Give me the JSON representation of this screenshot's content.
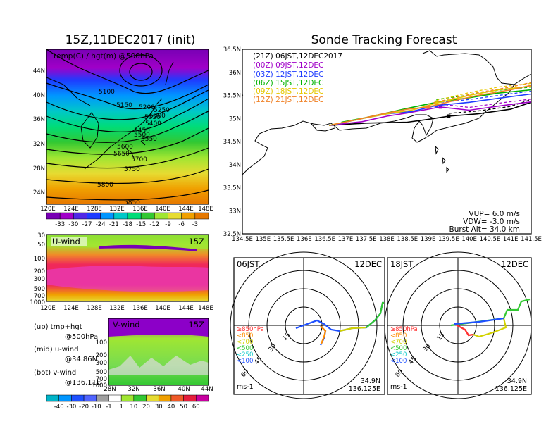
{
  "left_title": "15Z,11DEC2017 (init)",
  "right_title": "Sonde Tracking Forecast",
  "map500": {
    "label": "temp(C) / hgt(m) @500hPa",
    "y_ticks": [
      "44N",
      "40N",
      "36N",
      "32N",
      "28N",
      "24N"
    ],
    "x_ticks": [
      "120E",
      "124E",
      "128E",
      "132E",
      "136E",
      "140E",
      "144E",
      "148E"
    ],
    "contours": [
      "5100",
      "5150",
      "5200",
      "5250",
      "5300",
      "5350",
      "5400",
      "5450",
      "5500",
      "5550",
      "5600",
      "5650",
      "5700",
      "5750",
      "5800",
      "5850"
    ],
    "colorbar": [
      "-33",
      "-30",
      "-27",
      "-24",
      "-21",
      "-18",
      "-15",
      "-12",
      "-9",
      "-6",
      "-3"
    ]
  },
  "uwind": {
    "label": "U-wind",
    "time": "15Z",
    "y_ticks": [
      "30",
      "50",
      "100",
      "200",
      "300",
      "500",
      "700",
      "1000"
    ],
    "x_ticks": [
      "120E",
      "124E",
      "128E",
      "132E",
      "136E",
      "140E",
      "144E",
      "148E"
    ]
  },
  "vwind": {
    "label": "V-wind",
    "time": "15Z",
    "y_ticks": [
      "100",
      "200",
      "300",
      "500",
      "700",
      "1000"
    ],
    "x_ticks": [
      "28N",
      "32N",
      "36N",
      "40N",
      "44N"
    ],
    "colorbar": [
      "-40",
      "-30",
      "-20",
      "-10",
      "-1",
      "1",
      "10",
      "20",
      "30",
      "40",
      "50",
      "60"
    ]
  },
  "notes": [
    {
      "title": "(up) tmp+hgt",
      "sub": "@500hPa"
    },
    {
      "title": "(mid) u-wind",
      "sub": "@34.86N"
    },
    {
      "title": "(bot) v-wind",
      "sub": "@136.11E"
    }
  ],
  "track": {
    "x_ticks": [
      "134.5E",
      "135E",
      "135.5E",
      "136E",
      "136.5E",
      "137E",
      "137.5E",
      "138E",
      "138.5E",
      "139E",
      "139.5E",
      "140E",
      "140.5E",
      "141E",
      "141.5E"
    ],
    "y_ticks": [
      "36.5N",
      "36N",
      "35.5N",
      "35N",
      "34.5N",
      "34N",
      "33.5N",
      "33N",
      "32.5N"
    ],
    "legend": [
      {
        "text": "(21Z)  06JST,12DEC2017",
        "color": "#000000"
      },
      {
        "text": "(00Z)  09JST,12DEC",
        "color": "#a000c8"
      },
      {
        "text": "(03Z)  12JST,12DEC",
        "color": "#1e3cff"
      },
      {
        "text": "(06Z)  15JST,12DEC",
        "color": "#00b400"
      },
      {
        "text": "(09Z)  18JST,12DEC",
        "color": "#e6c800"
      },
      {
        "text": "(12Z)  21JST,12DEC",
        "color": "#f08228"
      }
    ],
    "params": [
      "VUP=  6.0  m/s",
      "VDW= -3.0  m/s",
      "Burst Alt=  34.0  km"
    ]
  },
  "hodographs": [
    {
      "time": "06JST",
      "date": "12DEC",
      "lat": "34.9N",
      "lon": "136.125E",
      "unit": "ms-1",
      "rings": [
        "15",
        "30",
        "45",
        "60"
      ]
    },
    {
      "time": "18JST",
      "date": "12DEC",
      "lat": "34.9N",
      "lon": "136.125E",
      "unit": "ms-1",
      "rings": [
        "15",
        "30",
        "45",
        "60"
      ]
    }
  ],
  "hodo_legend": [
    {
      "text": "≥850hPa",
      "color": "#ff3030"
    },
    {
      "text": "<850",
      "color": "#ff8c00"
    },
    {
      "text": "<700",
      "color": "#d2d200"
    },
    {
      "text": "<500",
      "color": "#32c832"
    },
    {
      "text": "<250",
      "color": "#00c8c8"
    },
    {
      "text": "<100",
      "color": "#1e50ff"
    }
  ],
  "chart_data": [
    {
      "type": "heatmap",
      "title": "15Z,11DEC2017 (init)",
      "ylabel": "",
      "xlabel": "",
      "x_range": [
        "120E",
        "148E"
      ],
      "y_range": [
        "22N",
        "47N"
      ],
      "colorbar_values": [
        -33,
        -30,
        -27,
        -24,
        -21,
        -18,
        -15,
        -12,
        -9,
        -6,
        -3
      ],
      "contour_values": [
        5100,
        5150,
        5200,
        5250,
        5300,
        5350,
        5400,
        5450,
        5500,
        5550,
        5600,
        5650,
        5700,
        5750,
        5800,
        5850
      ]
    },
    {
      "type": "heatmap",
      "x_range": [
        "120E",
        "148E"
      ],
      "y_levels": [
        30,
        50,
        100,
        200,
        300,
        500,
        700,
        1000
      ]
    },
    {
      "type": "heatmap",
      "x_range": [
        "28N",
        "44N"
      ],
      "y_levels": [
        100,
        200,
        300,
        500,
        700,
        1000
      ],
      "colorbar_values": [
        -40,
        -30,
        -20,
        -10,
        -1,
        1,
        10,
        20,
        30,
        40,
        50,
        60
      ]
    },
    {
      "type": "line",
      "title": "Sonde Tracking Forecast",
      "xlim": [
        134.5,
        141.5
      ],
      "ylim": [
        32.5,
        36.5
      ],
      "series": [
        {
          "name": "(21Z)  06JST,12DEC2017",
          "x": [
            136.6,
            137.5,
            138.5,
            139.0,
            139.5,
            140.2,
            141.0,
            141.5
          ],
          "y": [
            34.85,
            34.9,
            34.92,
            34.98,
            35.05,
            35.1,
            35.2,
            35.35
          ]
        },
        {
          "name": "(00Z)  09JST,12DEC",
          "x": [
            136.6,
            137.4,
            138.0,
            138.5,
            139.3,
            140.0,
            140.8,
            141.5
          ],
          "y": [
            34.85,
            34.93,
            35.05,
            35.12,
            35.25,
            35.18,
            35.28,
            35.36
          ]
        },
        {
          "name": "(03Z)  12JST,12DEC",
          "x": [
            136.7,
            137.3,
            138.0,
            138.6,
            139.2,
            140.0,
            140.8,
            141.5
          ],
          "y": [
            34.86,
            34.98,
            35.1,
            35.15,
            35.28,
            35.35,
            35.45,
            35.53
          ]
        },
        {
          "name": "(06Z)  15JST,12DEC",
          "x": [
            136.9,
            137.5,
            138.0,
            138.5,
            139.2,
            140.0,
            140.7,
            141.5
          ],
          "y": [
            34.92,
            35.02,
            35.12,
            35.22,
            35.35,
            35.45,
            35.55,
            35.62
          ]
        },
        {
          "name": "(09Z)  18JST,12DEC",
          "x": [
            136.6,
            137.3,
            138.0,
            138.6,
            139.2,
            140.0,
            140.7,
            141.5
          ],
          "y": [
            34.85,
            34.98,
            35.1,
            35.18,
            35.33,
            35.5,
            35.62,
            35.7
          ]
        },
        {
          "name": "(12Z)  21JST,12DEC",
          "x": [
            136.7,
            137.3,
            137.9,
            138.5,
            139.0,
            139.6,
            140.2,
            141.0,
            141.5
          ],
          "y": [
            34.87,
            34.98,
            35.1,
            35.2,
            35.25,
            35.38,
            35.5,
            35.62,
            35.72
          ]
        }
      ]
    }
  ]
}
